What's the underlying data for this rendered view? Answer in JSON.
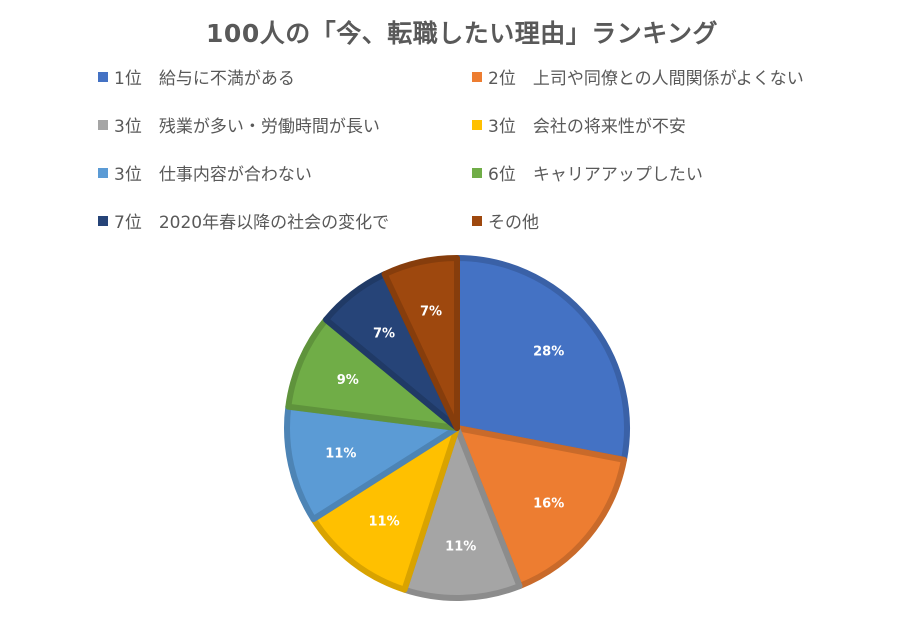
{
  "chart_data": {
    "type": "pie",
    "title": "100人の「今、転職したい理由」ランキング",
    "legend_position": "top",
    "slices": [
      {
        "label": "1位　給与に不満がある",
        "value": 28,
        "data_label": "28%",
        "color": "#4472C4"
      },
      {
        "label": "2位　上司や同僚との人間関係がよくない",
        "value": 16,
        "data_label": "16%",
        "color": "#ED7D31"
      },
      {
        "label": "3位　残業が多い・労働時間が長い",
        "value": 11,
        "data_label": "11%",
        "color": "#A5A5A5"
      },
      {
        "label": "3位　会社の将来性が不安",
        "value": 11,
        "data_label": "11%",
        "color": "#FFC000"
      },
      {
        "label": "3位　仕事内容が合わない",
        "value": 11,
        "data_label": "11%",
        "color": "#5B9BD5"
      },
      {
        "label": "6位　キャリアアップしたい",
        "value": 9,
        "data_label": "9%",
        "color": "#70AD47"
      },
      {
        "label": "7位　2020年春以降の社会の変化で",
        "value": 7,
        "data_label": "7%",
        "color": "#264478"
      },
      {
        "label": "その他",
        "value": 7,
        "data_label": "7%",
        "color": "#9E480E"
      }
    ]
  }
}
